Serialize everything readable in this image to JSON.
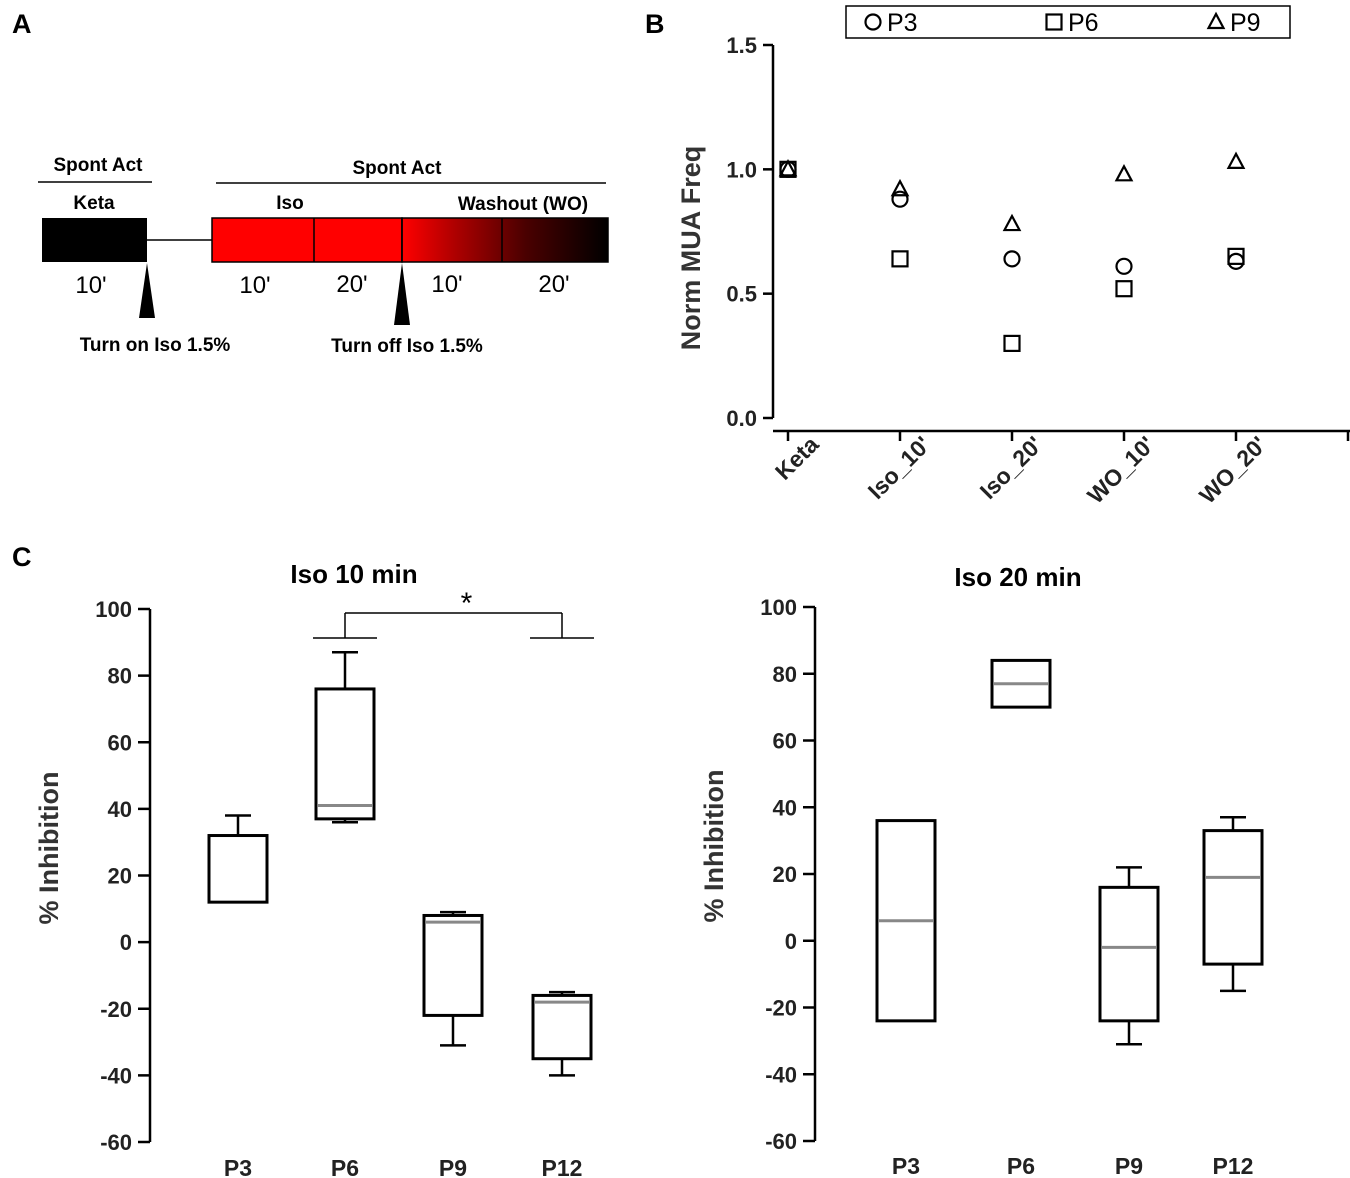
{
  "figure": {
    "panel_letters": [
      "A",
      "B",
      "C"
    ]
  },
  "timeline": {
    "left_header": "Spont Act",
    "right_header": "Spont Act",
    "keta_label": "Keta",
    "iso_label": "Iso",
    "washout_label": "Washout (WO)",
    "time_labels": [
      "10'",
      "10'",
      "20'",
      "10'",
      "20'"
    ],
    "turn_on_label": "Turn on Iso 1.5%",
    "turn_off_label": "Turn off Iso 1.5%",
    "colors": {
      "keta": "#000000",
      "iso": "#ff0000",
      "washout_end": "#000000"
    }
  },
  "chart_data": [
    {
      "id": "B",
      "type": "scatter",
      "title": "",
      "xlabel": "",
      "ylabel": "Norm MUA Freq",
      "categories": [
        "Keta",
        "Iso_10'",
        "Iso_20'",
        "WO_10'",
        "WO_20'"
      ],
      "ylim": [
        0.0,
        1.5
      ],
      "yticks": [
        "0.0",
        "0.5",
        "1.0",
        "1.5"
      ],
      "legend_position": "top-right",
      "series": [
        {
          "name": "P3",
          "marker": "circle",
          "values": [
            1.0,
            0.88,
            0.64,
            0.61,
            0.63
          ]
        },
        {
          "name": "P6",
          "marker": "square",
          "values": [
            1.0,
            0.64,
            0.3,
            0.52,
            0.65
          ]
        },
        {
          "name": "P9",
          "marker": "triangle",
          "values": [
            1.0,
            0.92,
            0.78,
            0.98,
            1.03
          ]
        }
      ]
    },
    {
      "id": "C1",
      "type": "box",
      "title": "Iso 10 min",
      "xlabel": "",
      "ylabel": "% Inhibition",
      "categories": [
        "P3",
        "P6",
        "P9",
        "P12"
      ],
      "ylim": [
        -60,
        100
      ],
      "yticks": [
        "-60",
        "-40",
        "-20",
        "0",
        "20",
        "40",
        "60",
        "80",
        "100"
      ],
      "boxes": [
        {
          "min": 12,
          "q1": 12,
          "median": 12,
          "q3": 32,
          "max": 38
        },
        {
          "min": 36,
          "q1": 37,
          "median": 41,
          "q3": 76,
          "max": 87
        },
        {
          "min": -31,
          "q1": -22,
          "median": 6,
          "q3": 8,
          "max": 9
        },
        {
          "min": -40,
          "q1": -35,
          "median": -18,
          "q3": -16,
          "max": -15
        }
      ],
      "significance": {
        "from": "P6",
        "to": "P12",
        "label": "*"
      }
    },
    {
      "id": "C2",
      "type": "box",
      "title": "Iso 20 min",
      "xlabel": "",
      "ylabel": "% Inhibition",
      "categories": [
        "P3",
        "P6",
        "P9",
        "P12"
      ],
      "ylim": [
        -60,
        100
      ],
      "yticks": [
        "-60",
        "-40",
        "-20",
        "0",
        "20",
        "40",
        "60",
        "80",
        "100"
      ],
      "boxes": [
        {
          "min": -24,
          "q1": -24,
          "median": 6,
          "q3": 36,
          "max": 36
        },
        {
          "min": 70,
          "q1": 70,
          "median": 77,
          "q3": 84,
          "max": 84
        },
        {
          "min": -31,
          "q1": -24,
          "median": -2,
          "q3": 16,
          "max": 22
        },
        {
          "min": -15,
          "q1": -7,
          "median": 19,
          "q3": 33,
          "max": 37
        }
      ]
    }
  ]
}
